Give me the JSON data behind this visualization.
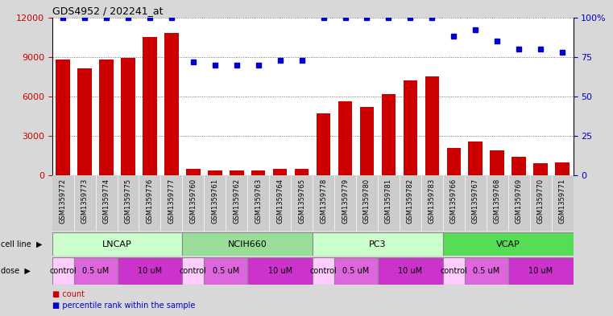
{
  "title": "GDS4952 / 202241_at",
  "samples": [
    "GSM1359772",
    "GSM1359773",
    "GSM1359774",
    "GSM1359775",
    "GSM1359776",
    "GSM1359777",
    "GSM1359760",
    "GSM1359761",
    "GSM1359762",
    "GSM1359763",
    "GSM1359764",
    "GSM1359765",
    "GSM1359778",
    "GSM1359779",
    "GSM1359780",
    "GSM1359781",
    "GSM1359782",
    "GSM1359783",
    "GSM1359766",
    "GSM1359767",
    "GSM1359768",
    "GSM1359769",
    "GSM1359770",
    "GSM1359771"
  ],
  "counts": [
    8800,
    8100,
    8800,
    8900,
    10500,
    10800,
    500,
    400,
    400,
    400,
    500,
    500,
    4700,
    5600,
    5200,
    6200,
    7200,
    7500,
    2100,
    2600,
    1900,
    1400,
    900,
    1000
  ],
  "percentile_ranks": [
    100,
    100,
    100,
    100,
    100,
    100,
    72,
    70,
    70,
    70,
    73,
    73,
    100,
    100,
    100,
    100,
    100,
    100,
    88,
    92,
    85,
    80,
    80,
    78
  ],
  "bar_color": "#cc0000",
  "dot_color": "#0000cc",
  "ylim_left": [
    0,
    12000
  ],
  "ylim_right": [
    0,
    100
  ],
  "yticks_left": [
    0,
    3000,
    6000,
    9000,
    12000
  ],
  "yticks_right": [
    0,
    25,
    50,
    75,
    100
  ],
  "grid_color": "#555555",
  "chart_bg": "#ffffff",
  "outer_bg": "#d8d8d8",
  "cell_line_info": [
    {
      "label": "LNCAP",
      "start": 0,
      "end": 6,
      "color": "#ccffcc"
    },
    {
      "label": "NCIH660",
      "start": 6,
      "end": 12,
      "color": "#99dd99"
    },
    {
      "label": "PC3",
      "start": 12,
      "end": 18,
      "color": "#ccffcc"
    },
    {
      "label": "VCAP",
      "start": 18,
      "end": 24,
      "color": "#55dd55"
    }
  ],
  "dose_spans": [
    {
      "label": "control",
      "start": 0,
      "end": 1,
      "color": "#ffccff"
    },
    {
      "label": "0.5 uM",
      "start": 1,
      "end": 3,
      "color": "#dd66dd"
    },
    {
      "label": "10 uM",
      "start": 3,
      "end": 6,
      "color": "#cc33cc"
    },
    {
      "label": "control",
      "start": 6,
      "end": 7,
      "color": "#ffccff"
    },
    {
      "label": "0.5 uM",
      "start": 7,
      "end": 9,
      "color": "#dd66dd"
    },
    {
      "label": "10 uM",
      "start": 9,
      "end": 12,
      "color": "#cc33cc"
    },
    {
      "label": "control",
      "start": 12,
      "end": 13,
      "color": "#ffccff"
    },
    {
      "label": "0.5 uM",
      "start": 13,
      "end": 15,
      "color": "#dd66dd"
    },
    {
      "label": "10 uM",
      "start": 15,
      "end": 18,
      "color": "#cc33cc"
    },
    {
      "label": "control",
      "start": 18,
      "end": 19,
      "color": "#ffccff"
    },
    {
      "label": "0.5 uM",
      "start": 19,
      "end": 21,
      "color": "#dd66dd"
    },
    {
      "label": "10 uM",
      "start": 21,
      "end": 24,
      "color": "#cc33cc"
    }
  ]
}
